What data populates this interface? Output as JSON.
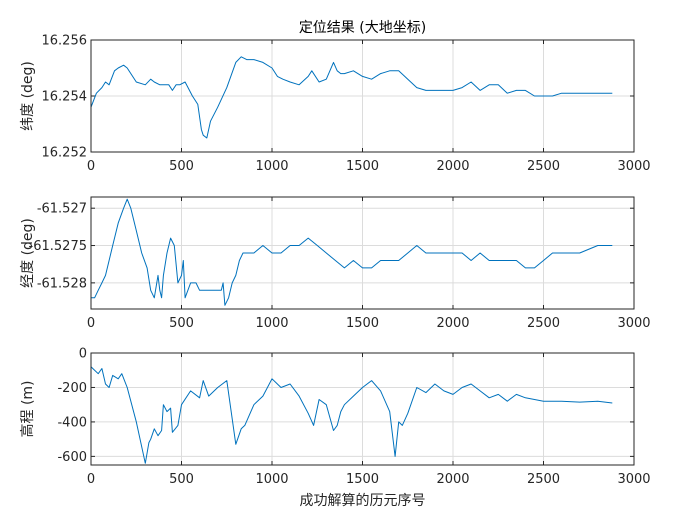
{
  "colors": {
    "series": "#0072BD",
    "axis": "#262626",
    "grid": "#dcdcdc"
  },
  "chart_data": [
    {
      "type": "line",
      "title": "定位结果 (大地坐标)",
      "xlabel": "",
      "ylabel": "纬度 (deg)",
      "xlim": [
        0,
        3000
      ],
      "ylim": [
        16.252,
        16.256
      ],
      "xticks": [
        0,
        500,
        1000,
        1500,
        2000,
        2500,
        3000
      ],
      "xtick_labels": [
        "0",
        "500",
        "1000",
        "1500",
        "2000",
        "2500",
        "3000"
      ],
      "yticks": [
        16.252,
        16.254,
        16.256
      ],
      "ytick_labels": [
        "16.252",
        "16.254",
        "16.256"
      ],
      "grid": true,
      "x": [
        0,
        30,
        60,
        80,
        100,
        130,
        150,
        180,
        200,
        250,
        300,
        330,
        350,
        380,
        400,
        430,
        450,
        470,
        490,
        520,
        560,
        590,
        610,
        620,
        640,
        660,
        700,
        750,
        800,
        830,
        860,
        900,
        950,
        1000,
        1030,
        1060,
        1100,
        1150,
        1200,
        1220,
        1260,
        1300,
        1340,
        1360,
        1380,
        1400,
        1450,
        1500,
        1550,
        1600,
        1650,
        1700,
        1750,
        1800,
        1850,
        1900,
        1950,
        2000,
        2050,
        2100,
        2150,
        2200,
        2250,
        2300,
        2350,
        2400,
        2450,
        2500,
        2550,
        2600,
        2700,
        2800,
        2880
      ],
      "values": [
        16.2536,
        16.2541,
        16.2543,
        16.2545,
        16.2544,
        16.2549,
        16.255,
        16.2551,
        16.255,
        16.2545,
        16.2544,
        16.2546,
        16.2545,
        16.2544,
        16.2544,
        16.2544,
        16.2542,
        16.2544,
        16.2544,
        16.2545,
        16.254,
        16.2537,
        16.2528,
        16.2526,
        16.2525,
        16.2531,
        16.2536,
        16.2543,
        16.2552,
        16.2554,
        16.2553,
        16.2553,
        16.2552,
        16.255,
        16.2547,
        16.2546,
        16.2545,
        16.2544,
        16.2547,
        16.2549,
        16.2545,
        16.2546,
        16.2552,
        16.2549,
        16.2548,
        16.2548,
        16.2549,
        16.2547,
        16.2546,
        16.2548,
        16.2549,
        16.2549,
        16.2546,
        16.2543,
        16.2542,
        16.2542,
        16.2542,
        16.2542,
        16.2543,
        16.2545,
        16.2542,
        16.2544,
        16.2544,
        16.2541,
        16.2542,
        16.2542,
        16.254,
        16.254,
        16.254,
        16.2541,
        16.2541,
        16.2541,
        16.2541
      ]
    },
    {
      "type": "line",
      "title": "",
      "xlabel": "",
      "ylabel": "经度 (deg)",
      "xlim": [
        0,
        3000
      ],
      "ylim": [
        -61.52835,
        -61.52685
      ],
      "xticks": [
        0,
        500,
        1000,
        1500,
        2000,
        2500,
        3000
      ],
      "xtick_labels": [
        "0",
        "500",
        "1000",
        "1500",
        "2000",
        "2500",
        "3000"
      ],
      "yticks": [
        -61.528,
        -61.5275,
        -61.527
      ],
      "ytick_labels": [
        "-61.528",
        "-61.5275",
        "-61.527"
      ],
      "grid": true,
      "x": [
        0,
        20,
        40,
        60,
        80,
        100,
        120,
        150,
        180,
        200,
        220,
        250,
        280,
        310,
        330,
        350,
        370,
        380,
        390,
        400,
        420,
        440,
        460,
        480,
        500,
        510,
        520,
        550,
        580,
        600,
        620,
        640,
        680,
        720,
        730,
        740,
        760,
        780,
        800,
        820,
        840,
        860,
        900,
        950,
        1000,
        1050,
        1100,
        1150,
        1200,
        1250,
        1300,
        1350,
        1400,
        1450,
        1500,
        1550,
        1600,
        1650,
        1700,
        1750,
        1800,
        1850,
        1900,
        1950,
        2000,
        2050,
        2100,
        2150,
        2200,
        2250,
        2300,
        2350,
        2400,
        2450,
        2500,
        2550,
        2600,
        2700,
        2800,
        2880
      ],
      "values": [
        -61.5282,
        -61.5282,
        -61.5281,
        -61.528,
        -61.5279,
        -61.5277,
        -61.5275,
        -61.5272,
        -61.527,
        -61.52688,
        -61.527,
        -61.5273,
        -61.5276,
        -61.5278,
        -61.5281,
        -61.5282,
        -61.5279,
        -61.5281,
        -61.5282,
        -61.5279,
        -61.5276,
        -61.5274,
        -61.5275,
        -61.528,
        -61.5279,
        -61.5277,
        -61.5282,
        -61.528,
        -61.528,
        -61.5281,
        -61.5281,
        -61.5281,
        -61.5281,
        -61.5281,
        -61.528,
        -61.5283,
        -61.5282,
        -61.528,
        -61.5279,
        -61.5277,
        -61.5276,
        -61.5276,
        -61.5276,
        -61.5275,
        -61.5276,
        -61.5276,
        -61.5275,
        -61.5275,
        -61.5274,
        -61.5275,
        -61.5276,
        -61.5277,
        -61.5278,
        -61.5277,
        -61.5278,
        -61.5278,
        -61.5277,
        -61.5277,
        -61.5277,
        -61.5276,
        -61.5275,
        -61.5276,
        -61.5276,
        -61.5276,
        -61.5276,
        -61.5276,
        -61.5277,
        -61.5276,
        -61.5277,
        -61.5277,
        -61.5277,
        -61.5277,
        -61.5278,
        -61.5278,
        -61.5277,
        -61.5276,
        -61.5276,
        -61.5276,
        -61.5275,
        -61.5275
      ]
    },
    {
      "type": "line",
      "title": "",
      "xlabel": "成功解算的历元序号",
      "ylabel": "高程 (m)",
      "xlim": [
        0,
        3000
      ],
      "ylim": [
        -650,
        0
      ],
      "xticks": [
        0,
        500,
        1000,
        1500,
        2000,
        2500,
        3000
      ],
      "xtick_labels": [
        "0",
        "500",
        "1000",
        "1500",
        "2000",
        "2500",
        "3000"
      ],
      "yticks": [
        -600,
        -400,
        -200,
        0
      ],
      "ytick_labels": [
        "-600",
        "-400",
        "-200",
        "0"
      ],
      "grid": true,
      "x": [
        0,
        20,
        40,
        60,
        80,
        100,
        120,
        150,
        170,
        200,
        250,
        300,
        320,
        330,
        350,
        370,
        390,
        400,
        420,
        440,
        450,
        480,
        500,
        550,
        600,
        620,
        650,
        700,
        750,
        800,
        830,
        850,
        900,
        950,
        1000,
        1050,
        1100,
        1150,
        1200,
        1230,
        1260,
        1300,
        1340,
        1360,
        1380,
        1400,
        1450,
        1500,
        1550,
        1600,
        1650,
        1680,
        1700,
        1720,
        1750,
        1800,
        1850,
        1900,
        1950,
        2000,
        2050,
        2100,
        2150,
        2200,
        2250,
        2300,
        2350,
        2400,
        2450,
        2500,
        2550,
        2600,
        2700,
        2800,
        2880
      ],
      "values": [
        -80,
        -100,
        -120,
        -90,
        -180,
        -200,
        -130,
        -150,
        -120,
        -200,
        -400,
        -640,
        -520,
        -500,
        -440,
        -480,
        -450,
        -300,
        -340,
        -320,
        -460,
        -420,
        -300,
        -220,
        -260,
        -160,
        -250,
        -200,
        -160,
        -530,
        -440,
        -420,
        -300,
        -250,
        -150,
        -200,
        -180,
        -250,
        -350,
        -420,
        -270,
        -300,
        -450,
        -420,
        -340,
        -300,
        -250,
        -200,
        -160,
        -220,
        -340,
        -600,
        -400,
        -420,
        -350,
        -200,
        -230,
        -180,
        -220,
        -240,
        -200,
        -180,
        -220,
        -260,
        -240,
        -280,
        -240,
        -260,
        -270,
        -280,
        -280,
        -280,
        -285,
        -280,
        -290
      ]
    }
  ]
}
